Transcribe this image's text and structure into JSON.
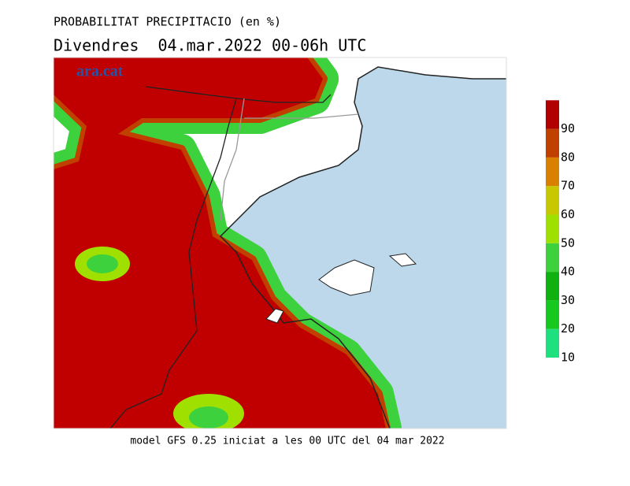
{
  "header": {
    "title": "PROBABILITAT PRECIPITACIO (en %)",
    "subtitle": "Divendres  04.mar.2022 00-06h UTC",
    "watermark": "ara.cat"
  },
  "footer": "model GFS 0.25 iniciat a les 00 UTC del 04 mar 2022",
  "colorbar": {
    "ticks": [
      10,
      20,
      30,
      40,
      50,
      60,
      70,
      80,
      90
    ],
    "colors": [
      "#1fe07f",
      "#17c91f",
      "#10b010",
      "#3ed13e",
      "#a0e000",
      "#c8c800",
      "#d88000",
      "#c04000",
      "#b00000"
    ]
  }
}
